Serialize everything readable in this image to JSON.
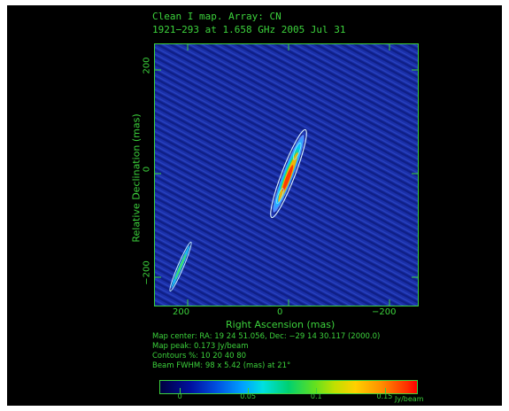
{
  "header": {
    "title_line1": "Clean I map.  Array: CN",
    "title_line2": "1921−293 at 1.658 GHz 2005 Jul 31"
  },
  "plot": {
    "xlabel": "Right Ascension  (mas)",
    "ylabel": "Relative Declination  (mas)",
    "x_ticks": [
      "200",
      "0",
      "−200"
    ],
    "y_ticks": [
      "200",
      "0",
      "−200"
    ],
    "xlim": [
      250,
      -250
    ],
    "ylim": [
      -250,
      250
    ],
    "background_color": "#1a2fa8",
    "frame_color": "#3cd23c"
  },
  "info": {
    "map_center": "Map center:  RA: 19 24 51.056,  Dec: −29 14 30.117 (2000.0)",
    "map_peak": "Map peak: 0.173 Jy/beam",
    "contours": "Contours %: 10 20 40 80",
    "beam": "Beam FWHM: 98 x 5.42 (mas) at 21°"
  },
  "colorbar": {
    "ticks": [
      "0",
      "0.05",
      "0.1",
      "0.15"
    ],
    "tick_values": [
      0,
      0.05,
      0.1,
      0.15
    ],
    "range": [
      -0.015,
      0.173
    ],
    "unit": "Jy/beam"
  }
}
